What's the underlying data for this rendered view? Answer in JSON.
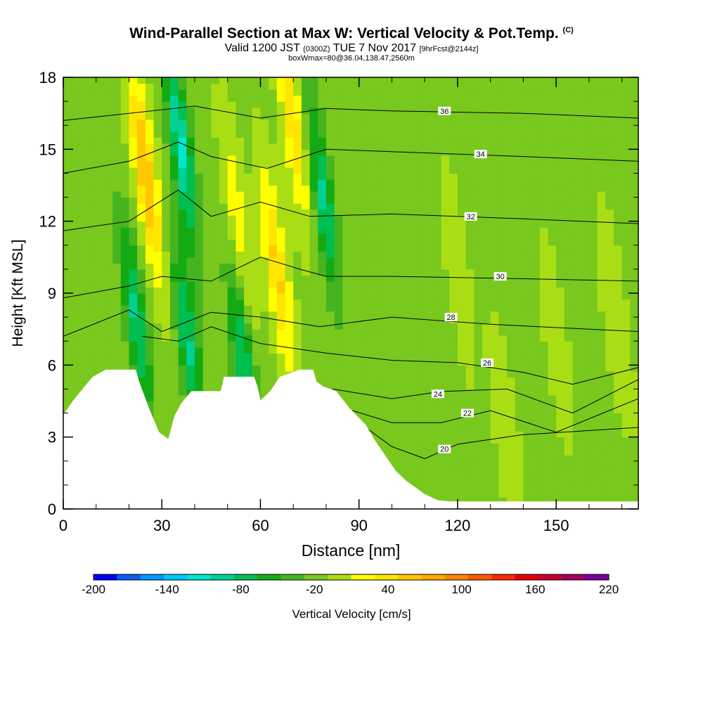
{
  "title": {
    "main": "Wind-Parallel Section at Max W: Vertical Velocity & Pot.Temp.",
    "tag": "(C)",
    "valid_prefix": "Valid 1200 JST",
    "valid_utc": "(0300Z)",
    "valid_date": "TUE 7 Nov 2017",
    "forecast": "[9hrFcst@2144z]",
    "box": "boxWmax=80@36.04,138.47,2560m"
  },
  "chart_data": {
    "type": "heatmap",
    "xlabel": "Distance [nm]",
    "ylabel": "Height [Kft MSL]",
    "xlim": [
      0,
      175
    ],
    "ylim": [
      0,
      18
    ],
    "x_ticks": [
      0,
      30,
      60,
      90,
      120,
      150
    ],
    "y_ticks": [
      0,
      3,
      6,
      9,
      12,
      15,
      18
    ],
    "colorbar": {
      "label": "Vertical Velocity [cm/s]",
      "min": -200,
      "max": 220,
      "step": 20,
      "tick_labels": [
        "-200",
        "-140",
        "-80",
        "-20",
        "40",
        "100",
        "160",
        "220"
      ],
      "colors": [
        "#0000f0",
        "#0a5af5",
        "#0096ff",
        "#00c8ff",
        "#00e6d2",
        "#00d296",
        "#00be50",
        "#14aa14",
        "#46b41e",
        "#78c81e",
        "#aade14",
        "#ffff00",
        "#ffe600",
        "#ffc800",
        "#ffaa00",
        "#ff8200",
        "#ff5a00",
        "#ff2800",
        "#e60000",
        "#c80032",
        "#a00064",
        "#78009b"
      ]
    },
    "terrain_kft": [
      [
        0,
        3.9
      ],
      [
        3,
        4.5
      ],
      [
        6,
        5
      ],
      [
        9,
        5.5
      ],
      [
        13,
        5.8
      ],
      [
        22,
        5.8
      ],
      [
        23,
        5.3
      ],
      [
        26,
        4.2
      ],
      [
        29,
        3.2
      ],
      [
        32,
        2.9
      ],
      [
        34,
        3.9
      ],
      [
        36,
        4.4
      ],
      [
        39,
        4.9
      ],
      [
        48,
        4.9
      ],
      [
        49,
        5.5
      ],
      [
        58,
        5.5
      ],
      [
        59,
        5.1
      ],
      [
        60,
        4.5
      ],
      [
        63,
        4.9
      ],
      [
        66,
        5.5
      ],
      [
        72,
        5.8
      ],
      [
        76,
        5.8
      ],
      [
        77,
        5.3
      ],
      [
        79,
        5.1
      ],
      [
        83,
        4.9
      ],
      [
        87,
        4.2
      ],
      [
        92,
        3.5
      ],
      [
        95,
        2.8
      ],
      [
        98,
        2.2
      ],
      [
        101,
        1.6
      ],
      [
        104,
        1.2
      ],
      [
        107,
        0.9
      ],
      [
        110,
        0.6
      ],
      [
        114,
        0.35
      ],
      [
        118,
        0.3
      ],
      [
        175,
        0.3
      ]
    ],
    "w_features": [
      {
        "x": 25,
        "y": 14,
        "w_cm_s": 90
      },
      {
        "x": 36,
        "y": 15,
        "w_cm_s": -100
      },
      {
        "x": 53,
        "y": 12,
        "w_cm_s": 40
      },
      {
        "x": 65,
        "y": 10,
        "w_cm_s": 70
      },
      {
        "x": 70,
        "y": 16,
        "w_cm_s": 60
      },
      {
        "x": 79,
        "y": 13,
        "w_cm_s": -80
      },
      {
        "x": 22,
        "y": 8,
        "w_cm_s": -80
      },
      {
        "x": 55,
        "y": 6,
        "w_cm_s": -80
      },
      {
        "x": 38,
        "y": 7,
        "w_cm_s": -80
      },
      {
        "x": 120,
        "y": 10,
        "w_cm_s": 20
      },
      {
        "x": 135,
        "y": 3,
        "w_cm_s": 25
      },
      {
        "x": 150,
        "y": 7,
        "w_cm_s": 20
      },
      {
        "x": 168,
        "y": 8,
        "w_cm_s": 25
      }
    ],
    "theta_contours_C": [
      {
        "value": 20,
        "label": "20",
        "label_x": 116,
        "label_y": 2.5,
        "pts": [
          [
            92,
            3.4
          ],
          [
            100,
            2.6
          ],
          [
            110,
            2.1
          ],
          [
            120,
            2.7
          ],
          [
            140,
            3.1
          ],
          [
            175,
            3.4
          ]
        ]
      },
      {
        "value": 22,
        "label": "22",
        "label_x": 123,
        "label_y": 4.0,
        "pts": [
          [
            88,
            4.1
          ],
          [
            100,
            3.6
          ],
          [
            115,
            3.6
          ],
          [
            130,
            4.1
          ],
          [
            150,
            3.2
          ],
          [
            175,
            4.6
          ]
        ]
      },
      {
        "value": 24,
        "label": "24",
        "label_x": 114,
        "label_y": 4.8,
        "pts": [
          [
            82,
            5.0
          ],
          [
            100,
            4.6
          ],
          [
            115,
            4.9
          ],
          [
            135,
            5.0
          ],
          [
            155,
            4.0
          ],
          [
            175,
            5.4
          ]
        ]
      },
      {
        "value": 26,
        "label": "26",
        "label_x": 129,
        "label_y": 6.1,
        "pts": [
          [
            24,
            7.2
          ],
          [
            35,
            7.0
          ],
          [
            45,
            7.6
          ],
          [
            60,
            6.9
          ],
          [
            80,
            6.5
          ],
          [
            100,
            6.2
          ],
          [
            120,
            6.1
          ],
          [
            140,
            5.7
          ],
          [
            155,
            5.2
          ],
          [
            175,
            5.9
          ]
        ]
      },
      {
        "value": 28,
        "label": "28",
        "label_x": 118,
        "label_y": 8.0,
        "pts": [
          [
            0,
            7.2
          ],
          [
            20,
            8.3
          ],
          [
            30,
            7.4
          ],
          [
            45,
            8.2
          ],
          [
            60,
            8.0
          ],
          [
            78,
            7.6
          ],
          [
            100,
            8.0
          ],
          [
            130,
            7.7
          ],
          [
            175,
            7.4
          ]
        ]
      },
      {
        "value": 30,
        "label": "30",
        "label_x": 133,
        "label_y": 9.7,
        "pts": [
          [
            0,
            8.8
          ],
          [
            20,
            9.3
          ],
          [
            30,
            9.7
          ],
          [
            45,
            9.5
          ],
          [
            60,
            10.5
          ],
          [
            72,
            10.0
          ],
          [
            80,
            9.7
          ],
          [
            100,
            9.7
          ],
          [
            140,
            9.6
          ],
          [
            175,
            9.5
          ]
        ]
      },
      {
        "value": 32,
        "label": "32",
        "label_x": 124,
        "label_y": 12.2,
        "pts": [
          [
            0,
            11.6
          ],
          [
            20,
            12.0
          ],
          [
            35,
            13.3
          ],
          [
            45,
            12.2
          ],
          [
            60,
            12.8
          ],
          [
            75,
            12.2
          ],
          [
            100,
            12.3
          ],
          [
            140,
            12.1
          ],
          [
            175,
            11.9
          ]
        ]
      },
      {
        "value": 34,
        "label": "34",
        "label_x": 127,
        "label_y": 14.8,
        "pts": [
          [
            0,
            14.0
          ],
          [
            20,
            14.5
          ],
          [
            35,
            15.3
          ],
          [
            45,
            14.7
          ],
          [
            62,
            14.2
          ],
          [
            80,
            15.0
          ],
          [
            100,
            14.9
          ],
          [
            140,
            14.7
          ],
          [
            175,
            14.5
          ]
        ]
      },
      {
        "value": 36,
        "label": "36",
        "label_x": 116,
        "label_y": 16.6,
        "pts": [
          [
            0,
            16.2
          ],
          [
            20,
            16.5
          ],
          [
            40,
            16.8
          ],
          [
            60,
            16.3
          ],
          [
            80,
            16.7
          ],
          [
            100,
            16.6
          ],
          [
            140,
            16.5
          ],
          [
            175,
            16.3
          ]
        ]
      }
    ]
  }
}
